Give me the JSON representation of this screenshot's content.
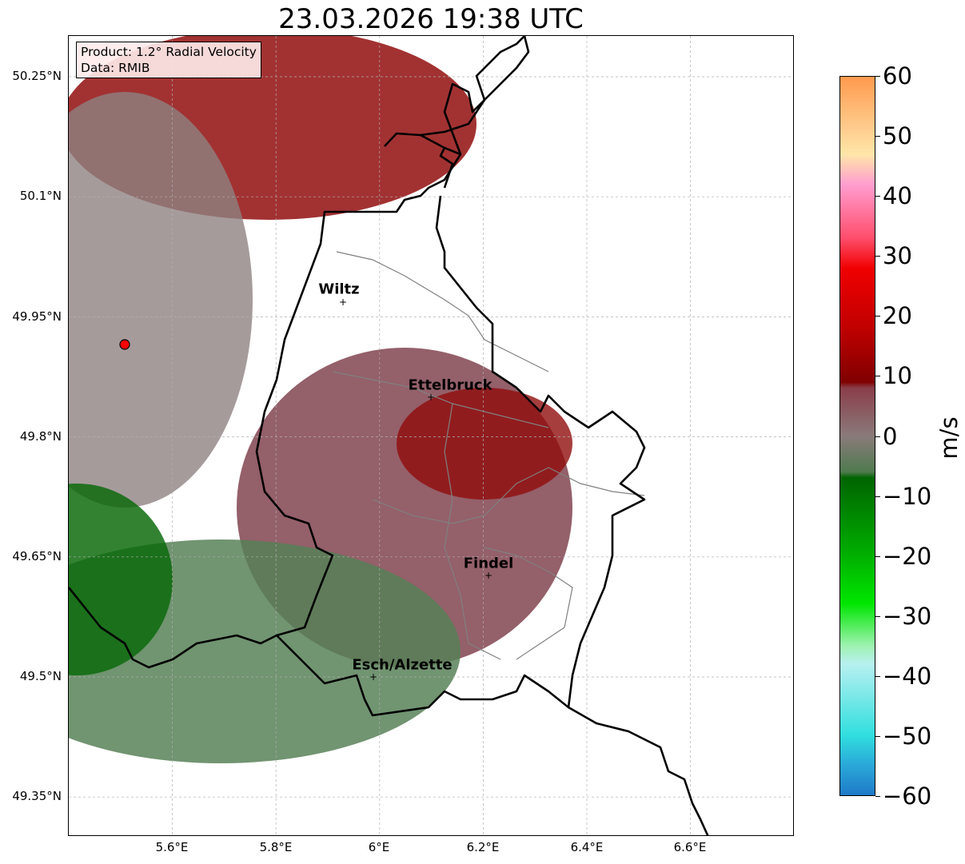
{
  "title": "23.03.2026 19:38 UTC",
  "info": {
    "product": "Product: 1.2° Radial Velocity",
    "data": "Data: RMIB"
  },
  "axes": {
    "lat_labels": [
      "50.25°N",
      "50.1°N",
      "49.95°N",
      "49.8°N",
      "49.65°N",
      "49.5°N",
      "49.35°N"
    ],
    "lat_values": [
      50.25,
      50.1,
      49.95,
      49.8,
      49.65,
      49.5,
      49.35
    ],
    "lon_labels": [
      "5.6°E",
      "5.8°E",
      "6°E",
      "6.2°E",
      "6.4°E",
      "6.6°E"
    ],
    "lon_values": [
      5.6,
      5.8,
      6.0,
      6.2,
      6.4,
      6.6
    ],
    "lat_range": [
      49.3,
      50.3
    ],
    "lon_range": [
      5.4,
      6.8
    ]
  },
  "cities": [
    {
      "name": "Wiltz",
      "lat": 49.97,
      "lon": 5.93
    },
    {
      "name": "Ettelbruck",
      "lat": 49.85,
      "lon": 6.1
    },
    {
      "name": "Findel",
      "lat": 49.63,
      "lon": 6.21
    },
    {
      "name": "Esch/Alzette",
      "lat": 49.5,
      "lon": 5.98
    }
  ],
  "radar_site": {
    "lat": 49.915,
    "lon": 5.505
  },
  "colorbar": {
    "unit": "m/s",
    "min": -60,
    "max": 60,
    "tick_labels": [
      "60",
      "50",
      "40",
      "30",
      "20",
      "10",
      "0",
      "−10",
      "−20",
      "−30",
      "−40",
      "−50",
      "−60"
    ],
    "tick_values": [
      60,
      50,
      40,
      30,
      20,
      10,
      0,
      -10,
      -20,
      -30,
      -40,
      -50,
      -60
    ],
    "stops": [
      {
        "v": 60,
        "c": "#ff9a4d"
      },
      {
        "v": 52,
        "c": "#ffc98a"
      },
      {
        "v": 47,
        "c": "#ffe6a8"
      },
      {
        "v": 42,
        "c": "#ff9ed0"
      },
      {
        "v": 33,
        "c": "#ff4d6b"
      },
      {
        "v": 28,
        "c": "#f00000"
      },
      {
        "v": 18,
        "c": "#c00000"
      },
      {
        "v": 9,
        "c": "#800000"
      },
      {
        "v": 8,
        "c": "#8a3e4a"
      },
      {
        "v": 0,
        "c": "#8a7a7a"
      },
      {
        "v": -6,
        "c": "#4f7a4f"
      },
      {
        "v": -7,
        "c": "#006400"
      },
      {
        "v": -20,
        "c": "#00b000"
      },
      {
        "v": -28,
        "c": "#00e600"
      },
      {
        "v": -35,
        "c": "#9ef2b0"
      },
      {
        "v": -38,
        "c": "#b8f0f0"
      },
      {
        "v": -50,
        "c": "#30dede"
      },
      {
        "v": -55,
        "c": "#2aa8d8"
      },
      {
        "v": -60,
        "c": "#1e7ac8"
      }
    ]
  },
  "colors": {
    "border": "#000000",
    "canton": "#808080",
    "grid": "#b0b0b0",
    "site": "#ff0000"
  }
}
